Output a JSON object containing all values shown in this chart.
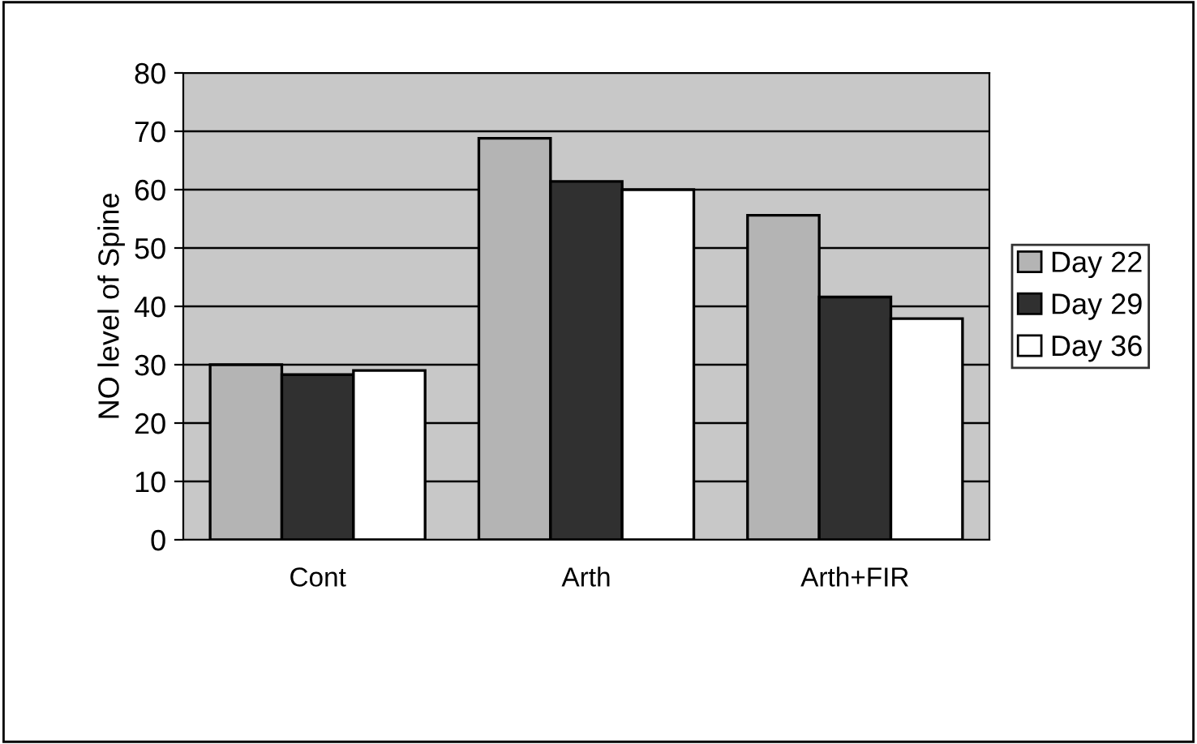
{
  "chart_data": {
    "type": "bar",
    "ylabel": "NO level of Spine",
    "categories": [
      "Cont",
      "Arth",
      "Arth+FIR"
    ],
    "series": [
      {
        "name": "Day 22",
        "color": "#b4b4b4",
        "values": [
          30,
          68.8,
          55.6
        ]
      },
      {
        "name": "Day 29",
        "color": "#303030",
        "values": [
          28.3,
          61.4,
          41.6
        ]
      },
      {
        "name": "Day 36",
        "color": "#ffffff",
        "values": [
          29,
          60,
          37.9
        ]
      }
    ],
    "ylim": [
      0,
      80
    ],
    "yticks": [
      0,
      10,
      20,
      30,
      40,
      50,
      60,
      70,
      80
    ],
    "grid": "y",
    "legend": "right"
  }
}
